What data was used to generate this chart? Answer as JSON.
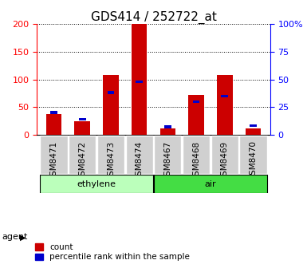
{
  "title": "GDS414 / 252722_at",
  "samples": [
    "GSM8471",
    "GSM8472",
    "GSM8473",
    "GSM8474",
    "GSM8467",
    "GSM8468",
    "GSM8469",
    "GSM8470"
  ],
  "groups": [
    {
      "name": "ethylene",
      "indices": [
        0,
        1,
        2,
        3
      ],
      "color": "#bbffbb"
    },
    {
      "name": "air",
      "indices": [
        4,
        5,
        6,
        7
      ],
      "color": "#44dd44"
    }
  ],
  "count_values": [
    38,
    24,
    108,
    200,
    12,
    72,
    108,
    12
  ],
  "percentile_values": [
    20,
    14,
    38,
    48,
    7,
    30,
    35,
    8
  ],
  "bar_color_red": "#cc0000",
  "bar_color_blue": "#0000cc",
  "left_ylim": [
    0,
    200
  ],
  "right_ylim": [
    0,
    100
  ],
  "left_yticks": [
    0,
    50,
    100,
    150,
    200
  ],
  "right_yticks": [
    0,
    25,
    50,
    75,
    100
  ],
  "right_yticklabels": [
    "0",
    "25",
    "50",
    "75",
    "100%"
  ],
  "agent_label": "agent",
  "title_fontsize": 11,
  "axis_fontsize": 8,
  "legend_fontsize": 7.5,
  "red_bar_width": 0.55,
  "blue_bar_width": 0.25,
  "xtick_bg": "#d0d0d0"
}
